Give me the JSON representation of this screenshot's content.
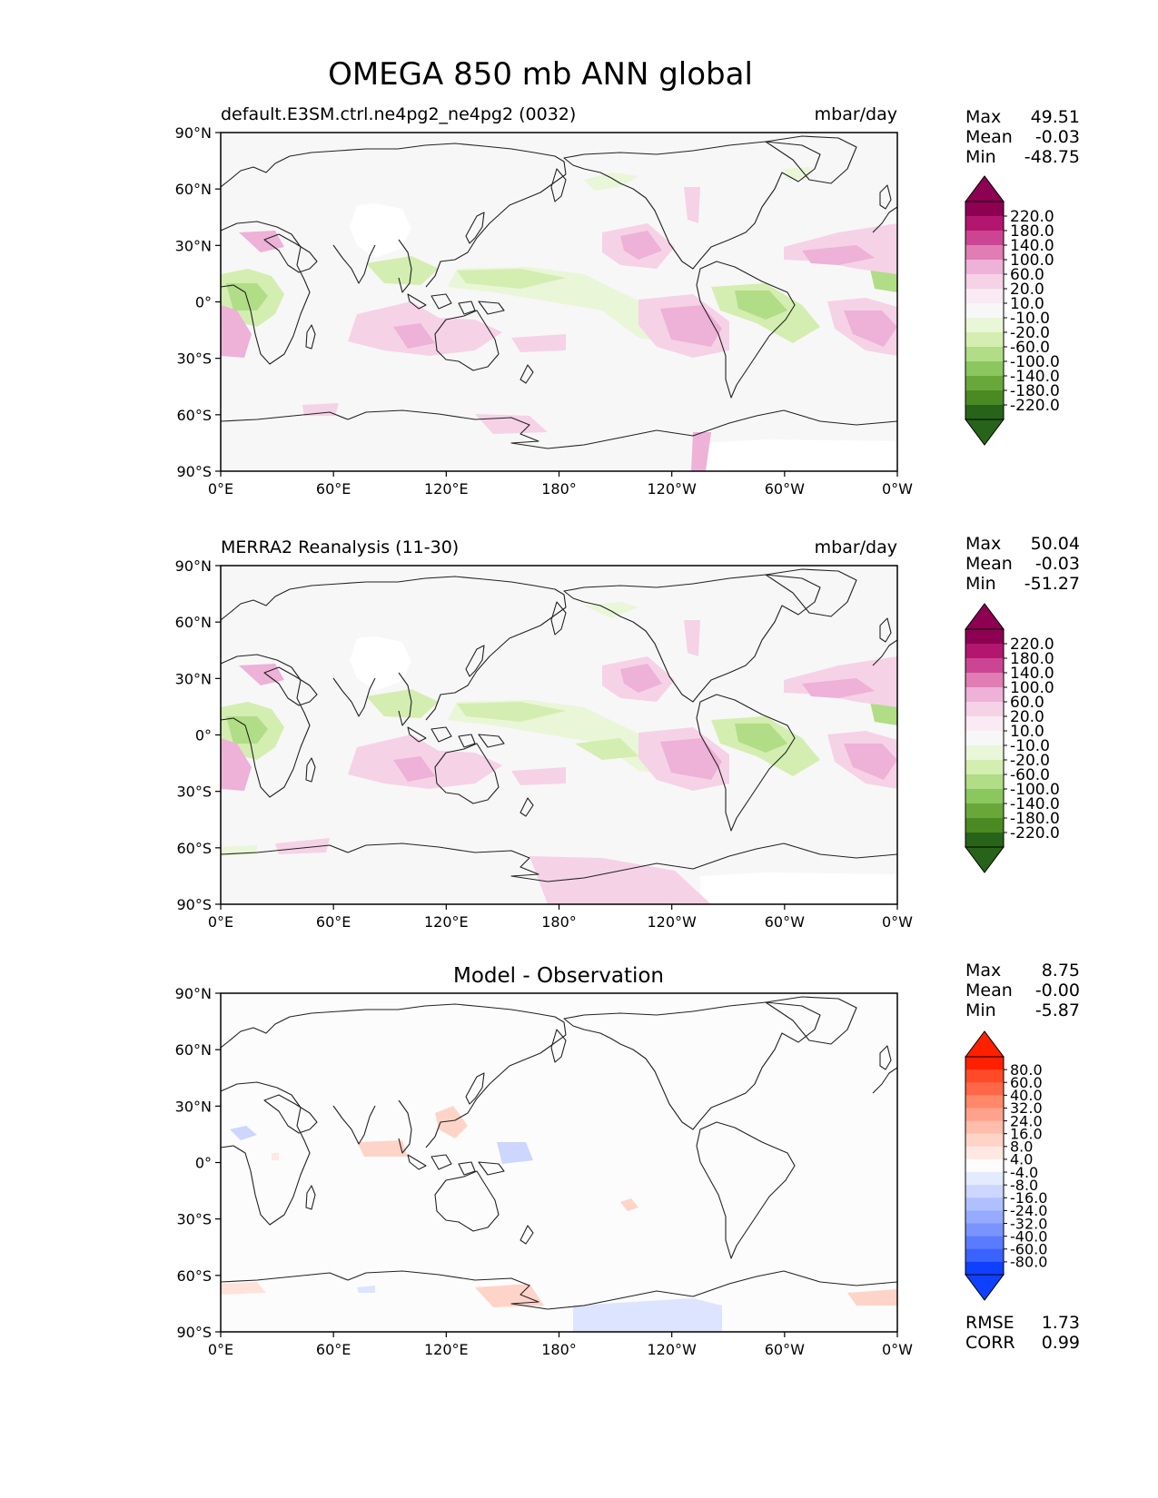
{
  "figure_title": "OMEGA 850 mb ANN global",
  "lat_ticks": [
    "90°N",
    "60°N",
    "30°N",
    "0°",
    "30°S",
    "60°S",
    "90°S"
  ],
  "lon_ticks": [
    "0°E",
    "60°E",
    "120°E",
    "180°",
    "120°W",
    "60°W",
    "0°W"
  ],
  "stat_labels": {
    "max": "Max",
    "mean": "Mean",
    "min": "Min",
    "rmse": "RMSE",
    "corr": "CORR"
  },
  "panels": [
    {
      "title_left": "default.E3SM.ctrl.ne4pg2_ne4pg2 (0032)",
      "title_center": "",
      "units": "mbar/day",
      "stats": {
        "max": "49.51",
        "mean": "-0.03",
        "min": "-48.75"
      }
    },
    {
      "title_left": "MERRA2 Reanalysis (11-30)",
      "title_center": "",
      "units": "mbar/day",
      "stats": {
        "max": "50.04",
        "mean": "-0.03",
        "min": "-51.27"
      }
    },
    {
      "title_left": "",
      "title_center": "Model - Observation",
      "units": "",
      "stats": {
        "max": "8.75",
        "mean": "-0.00",
        "min": "-5.87"
      },
      "metrics": {
        "rmse": "1.73",
        "corr": "0.99"
      }
    }
  ],
  "colorbars": {
    "field": {
      "labels": [
        "220.0",
        "180.0",
        "140.0",
        "100.0",
        "60.0",
        "20.0",
        "10.0",
        "-10.0",
        "-20.0",
        "-60.0",
        "-100.0",
        "-140.0",
        "-180.0",
        "-220.0"
      ],
      "colors": [
        "#8e0152",
        "#b3166f",
        "#cc4593",
        "#e07db5",
        "#eeb1d7",
        "#f6d2e7",
        "#faeaf3",
        "#f7f7f7",
        "#eaf6d8",
        "#d3eeb0",
        "#b0dd86",
        "#8cc65e",
        "#6aa73a",
        "#4b8a22",
        "#276419"
      ],
      "max_color": "#8e0152",
      "min_color": "#276419"
    },
    "diff": {
      "labels": [
        "80.0",
        "60.0",
        "40.0",
        "32.0",
        "24.0",
        "16.0",
        "8.0",
        "4.0",
        "-4.0",
        "-8.0",
        "-16.0",
        "-24.0",
        "-32.0",
        "-40.0",
        "-60.0",
        "-80.0"
      ],
      "colors": [
        "#ff2000",
        "#ff4a28",
        "#ff6748",
        "#ff8868",
        "#ffa28c",
        "#ffbcaa",
        "#ffd4c8",
        "#ffe8e2",
        "#fcfcfc",
        "#e4eaff",
        "#ccd6ff",
        "#b0c0ff",
        "#96abff",
        "#7a94ff",
        "#5a7bff",
        "#3a62ff",
        "#1040ff"
      ],
      "max_color": "#ff2000",
      "min_color": "#1040ff"
    }
  },
  "map_colors": {
    "ocean_background": "#f7f7f7",
    "diff_background": "#fcfcfc",
    "coast": "#222222"
  }
}
